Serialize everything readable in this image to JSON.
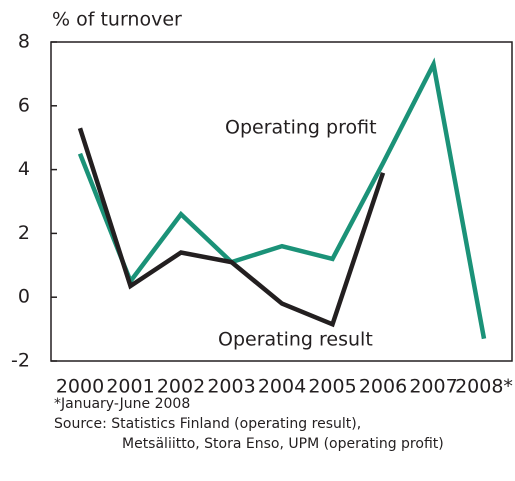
{
  "chart_data": {
    "type": "line",
    "y_axis_label": "% of turnover",
    "categories": [
      "2000",
      "2001",
      "2002",
      "2003",
      "2004",
      "2005",
      "2006",
      "2007",
      "2008*"
    ],
    "series": [
      {
        "name": "Operating profit",
        "color": "#1b9278",
        "values": [
          4.5,
          0.5,
          2.6,
          1.1,
          1.6,
          1.2,
          4.2,
          7.3,
          -1.3
        ]
      },
      {
        "name": "Operating result",
        "color": "#231f20",
        "values": [
          5.3,
          0.35,
          1.4,
          1.1,
          -0.2,
          -0.85,
          3.9,
          null,
          null
        ]
      }
    ],
    "ylim": [
      -2,
      8
    ],
    "yticks": [
      -2,
      0,
      2,
      4,
      6,
      8
    ],
    "notes": [
      "*January-June 2008",
      "Source: Statistics Finland (operating result),",
      "Metsäliitto, Stora Enso, UPM (operating profit)"
    ]
  }
}
